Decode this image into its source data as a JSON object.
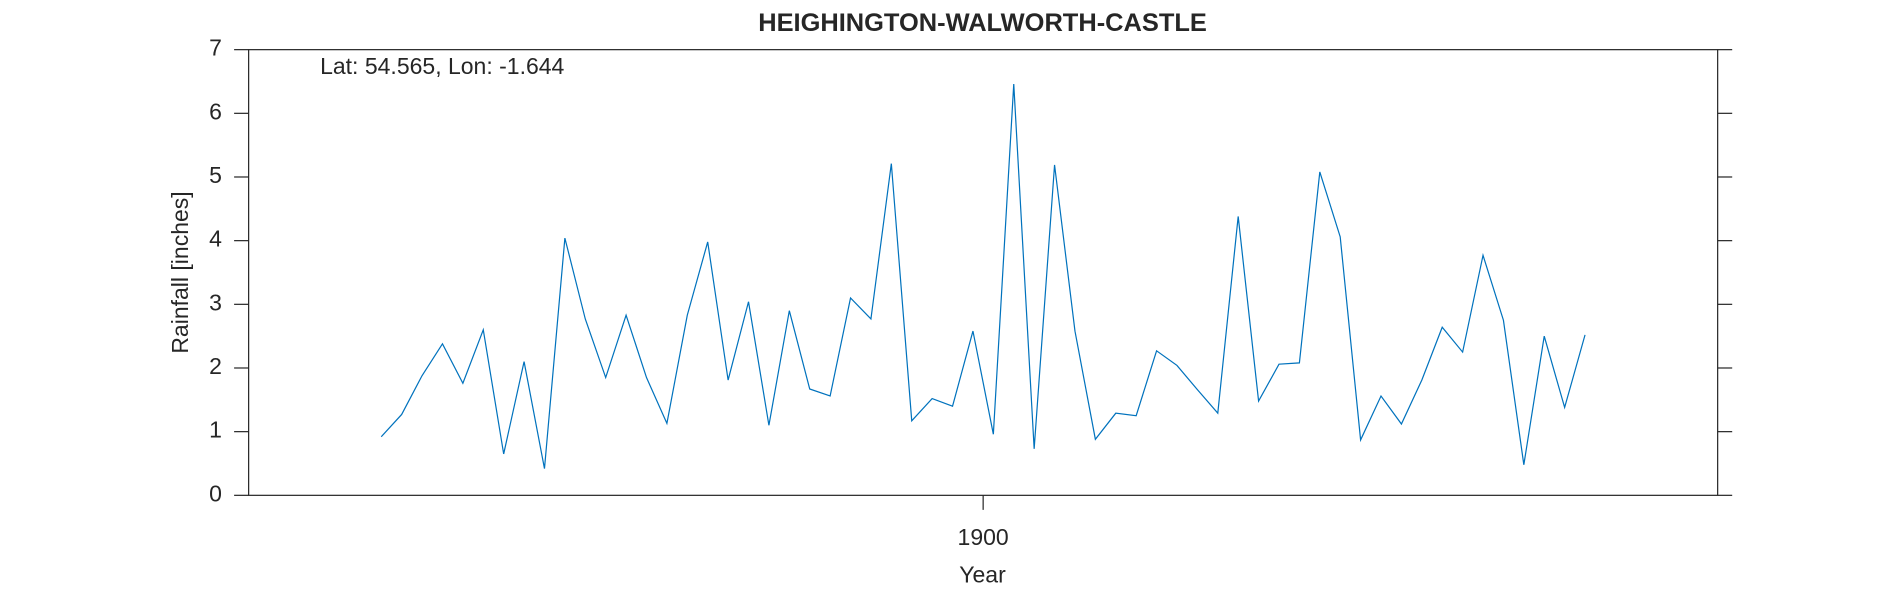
{
  "chart_data": {
    "type": "line",
    "title": "HEIGHINGTON-WALWORTH-CASTLE",
    "annotation": "Lat: 54.565, Lon: -1.644",
    "x_label": "Year",
    "y_label": "Rainfall [inches]",
    "x": [
      1870.5,
      1871.5,
      1872.5,
      1873.5,
      1874.5,
      1875.5,
      1876.5,
      1877.5,
      1878.5,
      1879.5,
      1880.5,
      1881.5,
      1882.5,
      1883.5,
      1884.5,
      1885.5,
      1886.5,
      1887.5,
      1888.5,
      1889.5,
      1890.5,
      1891.5,
      1892.5,
      1893.5,
      1894.5,
      1895.5,
      1896.5,
      1897.5,
      1898.5,
      1899.5,
      1900.5,
      1901.5,
      1902.5,
      1903.5,
      1904.5,
      1905.5,
      1906.5,
      1907.5,
      1908.5,
      1909.5,
      1910.5,
      1911.5,
      1912.5,
      1913.5,
      1914.5,
      1915.5,
      1916.5,
      1917.5,
      1918.5,
      1919.5,
      1920.5,
      1921.5,
      1922.5,
      1923.5,
      1924.5,
      1925.5,
      1926.5,
      1927.5,
      1928.5,
      1929.5
    ],
    "series": [
      {
        "color": "#0072bd",
        "values": [
          0.92,
          1.27,
          1.88,
          2.38,
          1.76,
          2.6,
          0.65,
          2.1,
          0.42,
          4.04,
          2.77,
          1.85,
          2.83,
          1.85,
          1.13,
          2.83,
          3.98,
          1.81,
          3.04,
          1.1,
          2.9,
          1.67,
          1.56,
          3.1,
          2.77,
          5.21,
          1.17,
          1.52,
          1.4,
          2.58,
          0.96,
          6.46,
          0.73,
          5.19,
          2.58,
          0.88,
          1.29,
          1.25,
          2.27,
          2.04,
          1.66,
          1.29,
          4.38,
          1.48,
          2.06,
          2.08,
          5.08,
          4.06,
          0.87,
          1.56,
          1.12,
          1.81,
          2.64,
          2.25,
          3.77,
          2.75,
          0.48,
          2.5,
          1.38,
          2.52
        ]
      }
    ],
    "xlim": [
      1864,
      1936
    ],
    "xticks": [
      1900
    ],
    "ylim": [
      0,
      7
    ],
    "yticks": [
      0,
      1,
      2,
      3,
      4,
      5,
      6,
      7
    ]
  }
}
